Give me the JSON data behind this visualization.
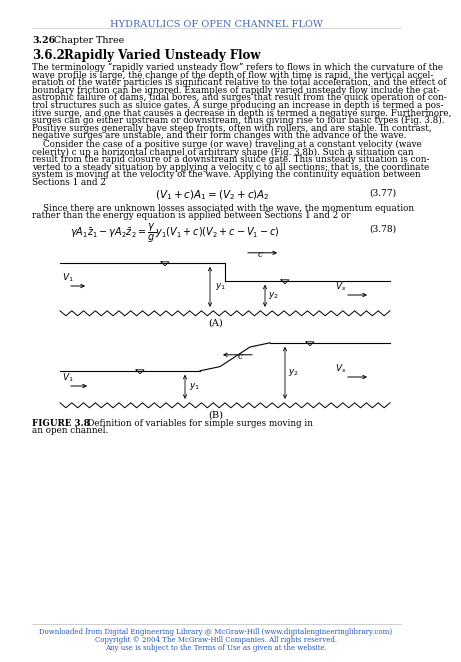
{
  "title": "HYDRAULICS OF OPEN CHANNEL FLOW",
  "title_color": "#4466AA",
  "bg_color": "#ffffff",
  "text_color": "#000000",
  "footer_color": "#2255BB",
  "page_label_bold": "3.26",
  "page_label_rest": "  Chapter Three",
  "section_num": "3.6.2",
  "section_title": "Rapidly Varied Unsteady Flow",
  "body1_lines": [
    "The terminology “rapidly varied unsteady flow” refers to flows in which the curvature of the",
    "wave profile is large, the change of the depth of flow with time is rapid, the vertical accel-",
    "eration of the water particles is significant relative to the total acceleration, and the effect of",
    "boundary friction can be ignored. Examples of rapidly varied unsteady flow include the cat-",
    "astrophic failure of dams, tidal bores, and surges that result from the quick operation of con-",
    "trol structures such as sluice gates. A surge producing an increase in depth is termed a pos-",
    "itive surge, and one that causes a decrease in depth is termed a negative surge. Furthermore,",
    "surges can go either upstream or downstream, thus giving rise to four basic types (Fig. 3.8).",
    "Positive surges generally have steep fronts, often with rollers, and are stable. In contrast,",
    "negative surges are unstable, and their form changes with the advance of the wave."
  ],
  "body2_indent": true,
  "body2_lines": [
    "    Consider the case of a positive surge (or wave) traveling at a constant velocity (wave",
    "celerity) c up a horizontal channel of arbitrary shape (Fig. 3.8b). Such a situation can",
    "result from the rapid closure of a downstream sluice gate. This unsteady situation is con-",
    "verted to a steady situation by applying a velocity c to all sections; that is, the coordinate",
    "system is moving at the velocity of the wave. Applying the continuity equation between",
    "Sections 1 and 2"
  ],
  "eq377_str": "$(V_1 + c)A_1 = (V_2 + c)A_2$",
  "eq377_num": "(3.77)",
  "between_lines": [
    "    Since there are unknown losses associated with the wave, the momentum equation",
    "rather than the energy equation is applied between Sections 1 and 2 or"
  ],
  "eq378_str": "$\\gamma A_1\\bar{z}_1 - \\gamma A_2\\bar{z}_2 = \\dfrac{\\gamma}{g}y_1(V_1 + c)(V_2 + c - V_1 - c)$",
  "eq378_num": "(3.78)",
  "fig_caption_bold": "FIGURE 3.8",
  "fig_caption_rest": "  Definition of variables for simple surges moving in",
  "fig_caption_line2": "an open channel.",
  "footer_lines": [
    "Downloaded from Digital Engineering Library @ McGraw-Hill (www.digitalengineeringlibrary.com)",
    "Copyright © 2004 The McGraw-Hill Companies. All rights reserved.",
    "Any use is subject to the Terms of Use as given at the website."
  ]
}
